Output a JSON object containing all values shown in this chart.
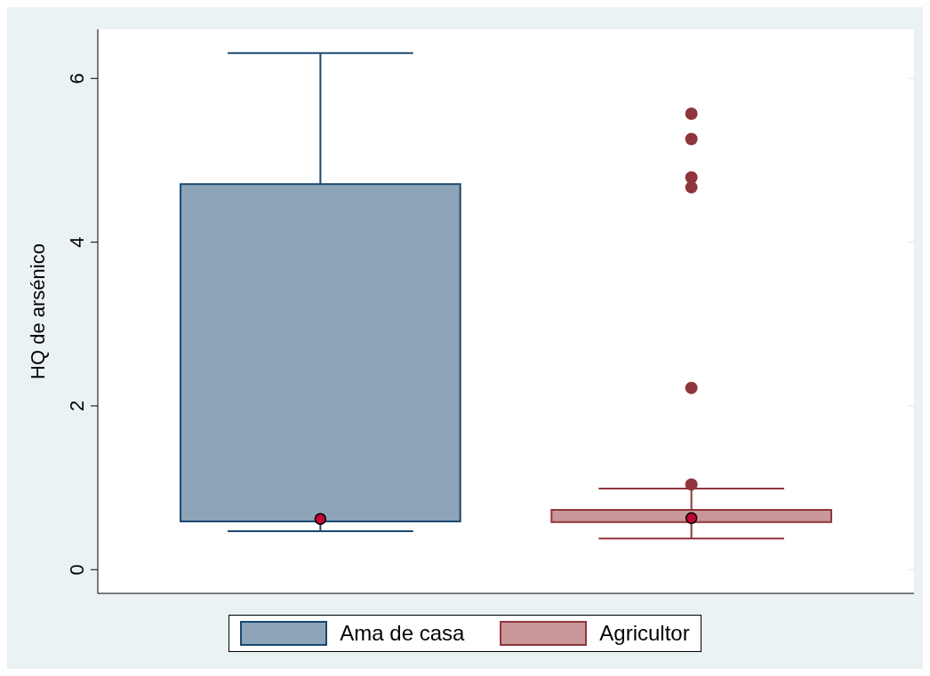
{
  "chart_data": {
    "type": "box",
    "ylabel": "HQ de arsénico",
    "categories": [
      null
    ],
    "ylim": [
      -0.29,
      6.6
    ],
    "yticks": [
      0,
      2,
      4,
      6
    ],
    "grid": "y",
    "legend": "bottom",
    "tick_labels": "y",
    "marker": "circle",
    "series": [
      {
        "name": "Ama de casa",
        "color": "#8ea4b8",
        "boxes": [
          {
            "low": 0.47,
            "q1": 0.59,
            "median": 0.62,
            "q3": 4.71,
            "high": 6.31
          }
        ]
      },
      {
        "name": "Agricultor",
        "color": "#c9979a",
        "boxes": [
          {
            "low": 0.38,
            "q1": 0.58,
            "median": 0.63,
            "q3": 0.73,
            "high": 0.99,
            "outliers": [
              1.04,
              2.22,
              4.67,
              4.79,
              5.26,
              5.57
            ]
          }
        ]
      }
    ]
  }
}
